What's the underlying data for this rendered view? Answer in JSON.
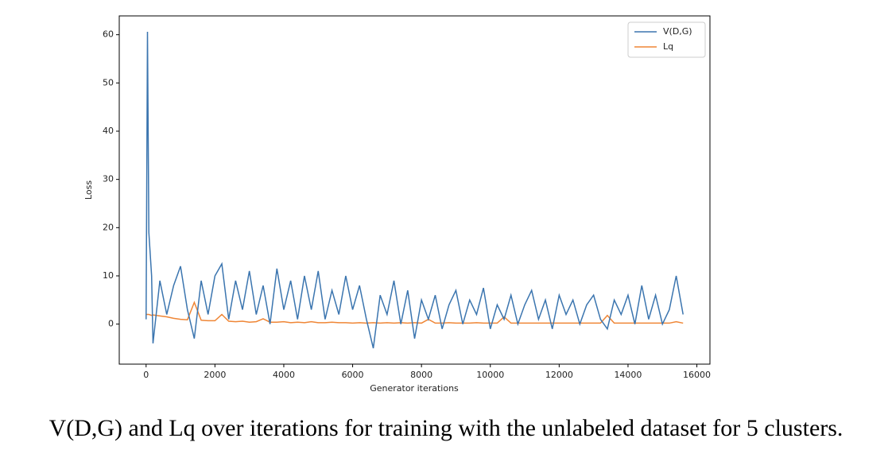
{
  "chart_data": {
    "type": "line",
    "xlabel": "Generator iterations",
    "ylabel": "Loss",
    "x": [
      0,
      40,
      80,
      160,
      200,
      400,
      600,
      800,
      1000,
      1200,
      1400,
      1600,
      1800,
      2000,
      2200,
      2400,
      2600,
      2800,
      3000,
      3200,
      3400,
      3600,
      3800,
      4000,
      4200,
      4400,
      4600,
      4800,
      5000,
      5200,
      5400,
      5600,
      5800,
      6000,
      6200,
      6400,
      6600,
      6800,
      7000,
      7200,
      7400,
      7600,
      7800,
      8000,
      8200,
      8400,
      8600,
      8800,
      9000,
      9200,
      9400,
      9600,
      9800,
      10000,
      10200,
      10400,
      10600,
      10800,
      11000,
      11200,
      11400,
      11600,
      11800,
      12000,
      12200,
      12400,
      12600,
      12800,
      13000,
      13200,
      13400,
      13600,
      13800,
      14000,
      14200,
      14400,
      14600,
      14800,
      15000,
      15200,
      15400,
      15600
    ],
    "series": [
      {
        "name": "V(D,G)",
        "color": "#3b75af",
        "values": [
          1,
          60.6,
          19,
          10,
          -4,
          9,
          2,
          8,
          12,
          3,
          -3,
          9,
          2,
          10,
          12.5,
          1,
          9,
          3,
          11,
          2,
          8,
          0,
          11.5,
          3,
          9,
          1,
          10,
          3,
          11,
          1,
          7,
          2,
          10,
          3,
          8,
          1,
          -5,
          6,
          2,
          9,
          0,
          7,
          -3,
          5,
          1,
          6,
          -1,
          4,
          7,
          0,
          5,
          2,
          7.5,
          -1,
          4,
          1,
          6,
          0,
          4,
          7,
          1,
          5,
          -1,
          6,
          2,
          5,
          0,
          4,
          6,
          1,
          -1,
          5,
          2,
          6,
          0,
          8,
          1,
          6,
          0,
          3,
          10,
          2
        ]
      },
      {
        "name": "Lq",
        "color": "#ef8636",
        "values": [
          2,
          2,
          2,
          1.8,
          1.9,
          1.7,
          1.5,
          1.2,
          1.0,
          0.9,
          4.5,
          0.8,
          0.7,
          0.7,
          2.0,
          0.6,
          0.5,
          0.6,
          0.4,
          0.5,
          1.1,
          0.4,
          0.4,
          0.5,
          0.3,
          0.4,
          0.3,
          0.5,
          0.3,
          0.3,
          0.4,
          0.3,
          0.3,
          0.2,
          0.3,
          0.2,
          0.3,
          0.2,
          0.3,
          0.2,
          0.3,
          0.2,
          0.3,
          0.2,
          1.0,
          0.2,
          0.2,
          0.3,
          0.2,
          0.2,
          0.2,
          0.3,
          0.2,
          0.2,
          0.2,
          1.5,
          0.2,
          0.2,
          0.2,
          0.2,
          0.2,
          0.2,
          0.2,
          0.2,
          0.2,
          0.2,
          0.2,
          0.2,
          0.2,
          0.2,
          1.8,
          0.2,
          0.2,
          0.2,
          0.2,
          0.2,
          0.2,
          0.2,
          0.2,
          0.2,
          0.5,
          0.2
        ]
      }
    ],
    "xlim": [
      -780,
      16380
    ],
    "ylim": [
      -8.3,
      63.9
    ],
    "xticks": [
      0,
      2000,
      4000,
      6000,
      8000,
      10000,
      12000,
      14000,
      16000
    ],
    "yticks": [
      0,
      10,
      20,
      30,
      40,
      50,
      60
    ],
    "legend": "upper right"
  },
  "caption": "V(D,G) and Lq over iterations for training with the unlabeled dataset for 5 clusters."
}
